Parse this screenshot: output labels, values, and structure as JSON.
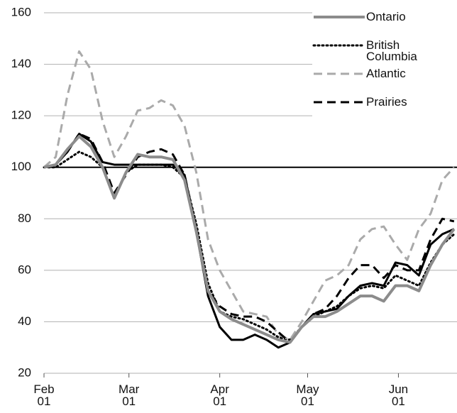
{
  "chart_data": {
    "type": "line",
    "x": [
      0,
      4,
      8,
      12,
      16,
      20,
      24,
      28,
      32,
      36,
      40,
      44,
      48,
      52,
      56,
      60,
      64,
      68,
      72,
      76,
      80,
      84,
      88,
      92,
      96,
      100,
      104,
      108,
      112,
      116,
      120,
      124,
      128,
      132,
      136,
      140
    ],
    "xlim": [
      0,
      141
    ],
    "xticks": [
      {
        "value": 0,
        "label": "Feb 01"
      },
      {
        "value": 29,
        "label": "Mar 01"
      },
      {
        "value": 60,
        "label": "Apr 01"
      },
      {
        "value": 90,
        "label": "May 01"
      },
      {
        "value": 121,
        "label": "Jun 01"
      }
    ],
    "ylim": [
      20,
      160
    ],
    "yticks": [
      20,
      40,
      60,
      80,
      100,
      120,
      140,
      160
    ],
    "grid": true,
    "reference_line": 100,
    "legend": "upper right",
    "series": [
      {
        "color": "#000000",
        "dash": "solid",
        "width": 3,
        "values": [
          100,
          101,
          106,
          113,
          110,
          102,
          101,
          101,
          101,
          101,
          101,
          101,
          97,
          75,
          50,
          38,
          33,
          33,
          35,
          33,
          30,
          32,
          38,
          43,
          44,
          45,
          50,
          54,
          55,
          54,
          63,
          62,
          58,
          70,
          74,
          76
        ]
      },
      {
        "name": "British Columbia",
        "color": "#000000",
        "dash": "dotted",
        "width": 3,
        "values": [
          100,
          100,
          103,
          106,
          104,
          100,
          88,
          98,
          101,
          101,
          101,
          100,
          96,
          78,
          55,
          44,
          42,
          41,
          39,
          37,
          34,
          33,
          38,
          42,
          44,
          46,
          50,
          53,
          54,
          53,
          58,
          56,
          54,
          63,
          70,
          74
        ]
      },
      {
        "name": "Atlantic",
        "color": "#aaaaaa",
        "dash": "dashed",
        "width": 3,
        "values": [
          100,
          104,
          128,
          145,
          138,
          118,
          104,
          112,
          122,
          123,
          126,
          124,
          116,
          98,
          72,
          60,
          52,
          44,
          43,
          42,
          35,
          33,
          40,
          48,
          56,
          58,
          62,
          72,
          76,
          77,
          70,
          64,
          76,
          82,
          95,
          100
        ]
      },
      {
        "name": "Prairies",
        "color": "#000000",
        "dash": "dashed",
        "width": 3,
        "values": [
          100,
          101,
          106,
          113,
          111,
          102,
          90,
          97,
          104,
          106,
          107,
          105,
          97,
          76,
          52,
          46,
          43,
          42,
          42,
          40,
          36,
          32,
          38,
          43,
          45,
          50,
          57,
          62,
          62,
          57,
          62,
          60,
          60,
          72,
          80,
          79
        ]
      },
      {
        "name": "Ontario",
        "color": "#8c8c8c",
        "dash": "solid",
        "width": 4,
        "values": [
          100,
          101,
          107,
          112,
          108,
          100,
          88,
          98,
          105,
          104,
          104,
          103,
          95,
          75,
          52,
          44,
          41,
          39,
          37,
          35,
          33,
          32,
          38,
          42,
          42,
          44,
          47,
          50,
          50,
          48,
          54,
          54,
          52,
          62,
          70,
          76
        ]
      }
    ],
    "legend_order": [
      "Ontario",
      "British Columbia",
      "Atlantic",
      "Prairies"
    ]
  }
}
